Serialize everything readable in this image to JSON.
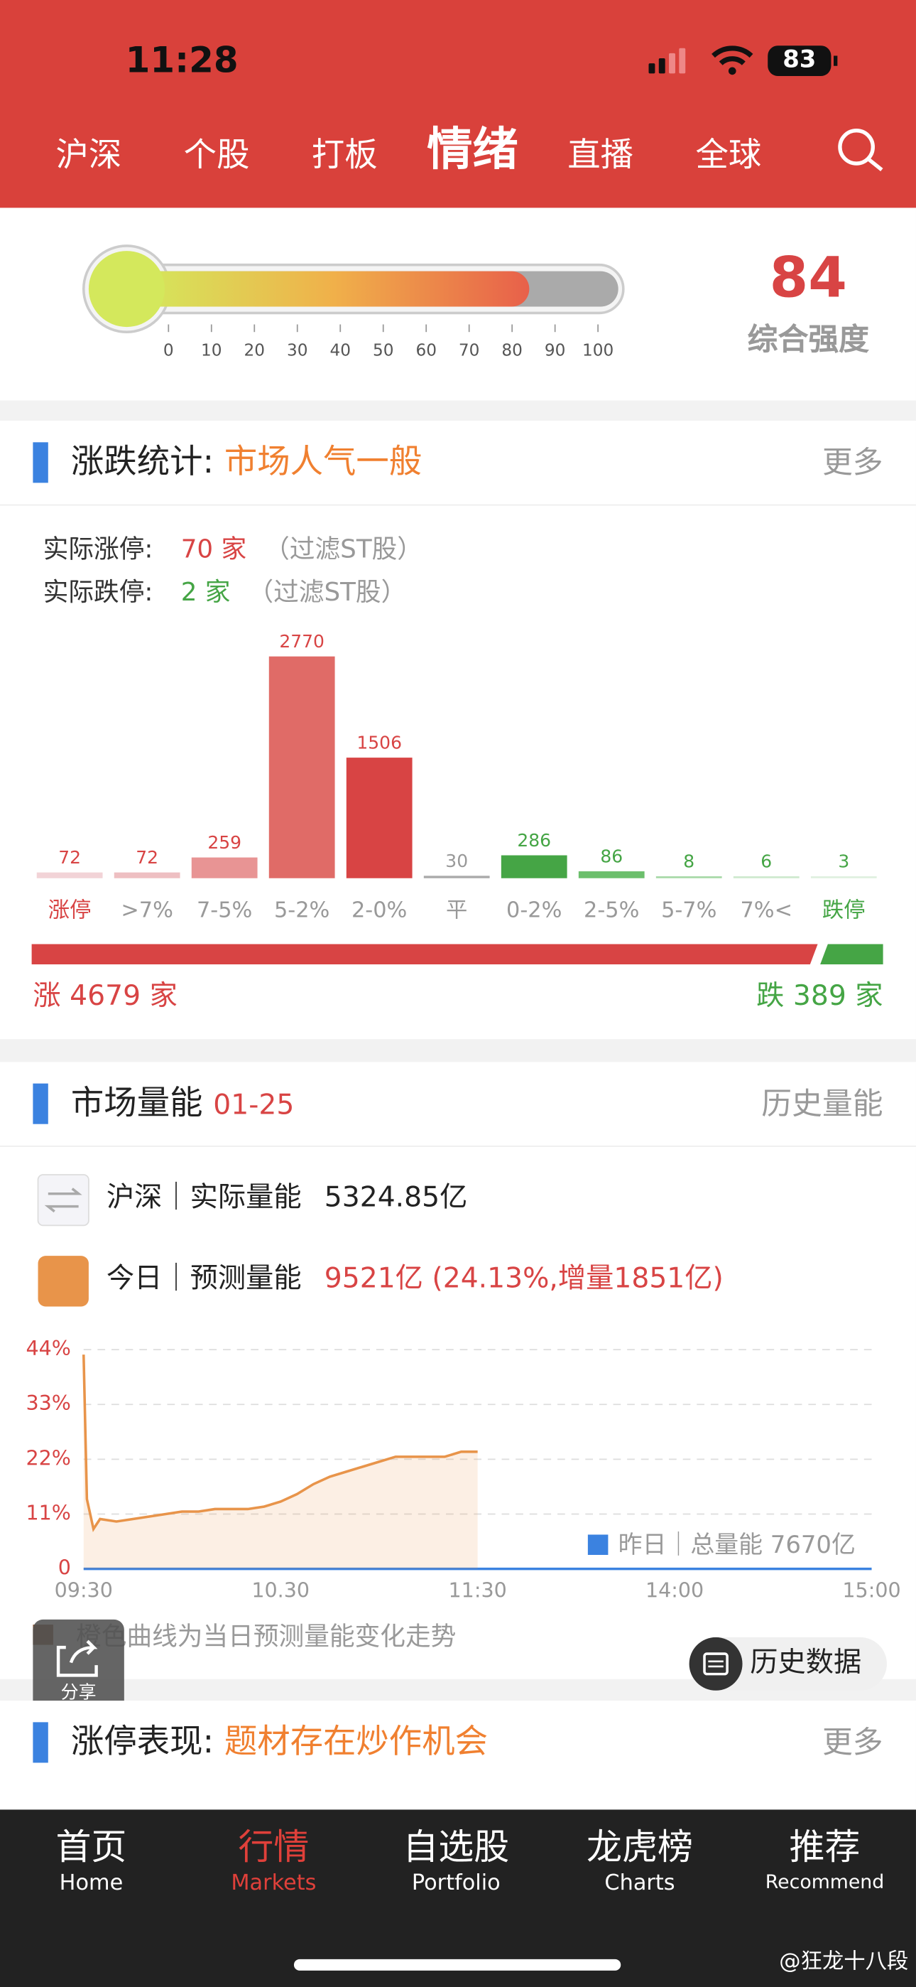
{
  "status_bar": {
    "time": "11:28",
    "battery": "83"
  },
  "tabs": [
    "沪深",
    "个股",
    "打板",
    "情绪",
    "直播",
    "全球"
  ],
  "active_tab": 3,
  "gauge": {
    "value": 84,
    "label": "综合强度",
    "ticks": [
      0,
      10,
      20,
      30,
      40,
      50,
      60,
      70,
      80,
      90,
      100
    ]
  },
  "breadth": {
    "title": "涨跌统计:",
    "subtitle": "市场人气一般",
    "more": "更多",
    "limit_up": {
      "label": "实际涨停:",
      "count": "70 家",
      "note": "（过滤ST股）"
    },
    "limit_down": {
      "label": "实际跌停:",
      "count": "2 家",
      "note": "（过滤ST股）"
    },
    "chart": {
      "type": "bar",
      "categories": [
        "涨停",
        ">7%",
        "7-5%",
        "5-2%",
        "2-0%",
        "平",
        "0-2%",
        "2-5%",
        "5-7%",
        "7%<",
        "跌停"
      ],
      "values": [
        72,
        72,
        259,
        2770,
        1506,
        30,
        286,
        86,
        8,
        6,
        3
      ],
      "colors": [
        "#f2d3d7",
        "#eebfc2",
        "#e89494",
        "#e06b67",
        "#d84444",
        "#aaaaaa",
        "#45a545",
        "#6cbf6c",
        "#a6d8a6",
        "#cde9cd",
        "#dff0df"
      ],
      "label_colors": [
        "#d84444",
        "#d84444",
        "#d84444",
        "#d84444",
        "#d84444",
        "#999999",
        "#45a545",
        "#45a545",
        "#45a545",
        "#45a545",
        "#45a545"
      ],
      "category_colors": [
        "#d84444",
        "#999999",
        "#999999",
        "#999999",
        "#999999",
        "#999999",
        "#999999",
        "#999999",
        "#999999",
        "#999999",
        "#45a545"
      ]
    },
    "ratio": {
      "up_label": "涨",
      "up": 4679,
      "down_label": "跌",
      "down": 389,
      "unit": "家"
    }
  },
  "volume": {
    "title": "市场量能",
    "date": "01-25",
    "more": "历史量能",
    "rows": [
      {
        "label": "沪深｜实际量能",
        "value": "5324.85亿"
      },
      {
        "label": "今日｜预测量能",
        "value": "9521亿 (24.13%,增量1851亿)"
      }
    ],
    "chart": {
      "type": "line",
      "x": [
        "09:30",
        "09:31",
        "09:33",
        "09:35",
        "09:40",
        "09:45",
        "09:50",
        "09:55",
        "10:00",
        "10:05",
        "10:10",
        "10:15",
        "10:20",
        "10:25",
        "10:30",
        "10:35",
        "10:40",
        "10:45",
        "10:50",
        "10:55",
        "11:00",
        "11:05",
        "11:10",
        "11:15",
        "11:20",
        "11:25",
        "11:30"
      ],
      "series": [
        {
          "name": "今日",
          "color": "#e8944a",
          "values": [
            43,
            14,
            8,
            10,
            9.5,
            10,
            10.5,
            11,
            11.5,
            11.5,
            12,
            12,
            12,
            12.5,
            13.5,
            15,
            17,
            18.5,
            19.5,
            20.5,
            21.5,
            22.5,
            22.5,
            22.5,
            22.5,
            23.5,
            23.5
          ]
        }
      ],
      "legend": {
        "name": "昨日｜总量能 7670亿",
        "color": "#3b82e0"
      },
      "ylim": [
        0,
        44
      ],
      "yticks": [
        0,
        {
          "value": 11,
          "label": "11%"
        },
        {
          "value": 22,
          "label": "22%"
        },
        {
          "value": 33,
          "label": "33%"
        },
        {
          "value": 44,
          "label": "44%"
        }
      ],
      "xlim": [
        "09:30",
        "15:00"
      ],
      "xticks": [
        "09:30",
        "10.30",
        "11:30",
        "14:00",
        "15:00"
      ]
    },
    "note": "橙色曲线为当日预测量能变化走势",
    "share": "分享",
    "history": "历史数据"
  },
  "limit_section": {
    "title": "涨停表现:",
    "subtitle": "题材存在炒作机会",
    "more": "更多"
  },
  "nav": [
    {
      "cn": "首页",
      "en": "Home"
    },
    {
      "cn": "行情",
      "en": "Markets"
    },
    {
      "cn": "自选股",
      "en": "Portfolio"
    },
    {
      "cn": "龙虎榜",
      "en": "Charts"
    },
    {
      "cn": "推荐",
      "en": "Recommend"
    }
  ],
  "active_nav": 1,
  "watermark": "@狂龙十八段"
}
